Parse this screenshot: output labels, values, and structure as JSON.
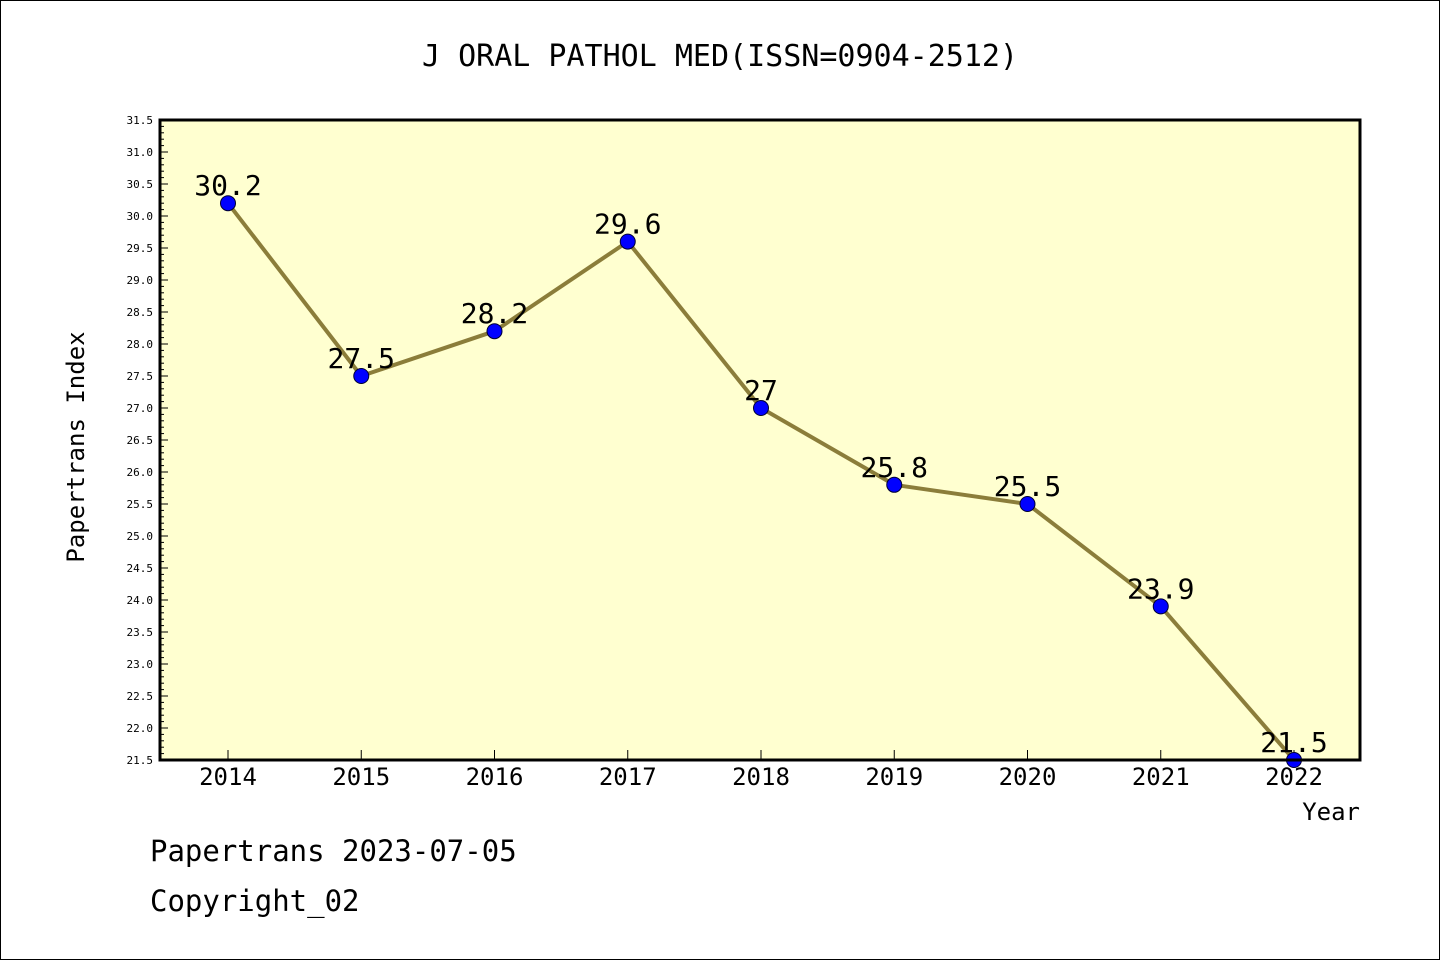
{
  "chart_data": {
    "type": "line",
    "title": "J ORAL PATHOL MED(ISSN=0904-2512)",
    "xlabel": "Year",
    "ylabel": "Papertrans Index",
    "categories": [
      "2014",
      "2015",
      "2016",
      "2017",
      "2018",
      "2019",
      "2020",
      "2021",
      "2022"
    ],
    "values": [
      30.2,
      27.5,
      28.2,
      29.6,
      27.0,
      25.8,
      25.5,
      23.9,
      21.5
    ],
    "data_labels": [
      "30.2",
      "27.5",
      "28.2",
      "29.6",
      "27",
      "25.8",
      "25.5",
      "23.9",
      "21.5"
    ],
    "ylim": [
      21.5,
      31.5
    ],
    "ytick_step": 0.5,
    "grid": false,
    "colors": {
      "plot_background": "#FFFFD0",
      "line": "#8B7D3A",
      "marker": "#0000FF"
    }
  },
  "footer": {
    "source": "Papertrans 2023-07-05",
    "copyright": "Copyright_02"
  }
}
